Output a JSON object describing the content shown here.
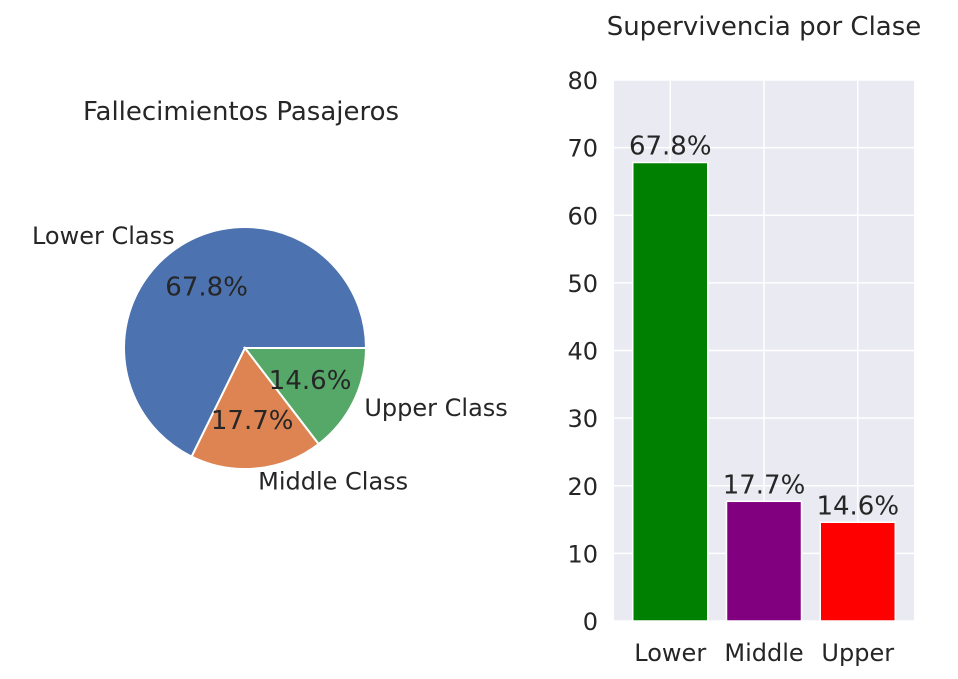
{
  "chart_data": [
    {
      "type": "pie",
      "title": "Fallecimientos Pasajeros",
      "labels": [
        "Lower Class",
        "Middle Class",
        "Upper Class"
      ],
      "values": [
        67.8,
        17.7,
        14.6
      ],
      "pct_labels": [
        "67.8%",
        "17.7%",
        "14.6%"
      ],
      "colors": [
        "#4c72b0",
        "#dd8452",
        "#55a868"
      ]
    },
    {
      "type": "bar",
      "title": "Supervivencia por Clase",
      "categories": [
        "Lower",
        "Middle",
        "Upper"
      ],
      "values": [
        67.8,
        17.7,
        14.6
      ],
      "value_labels": [
        "67.8%",
        "17.7%",
        "14.6%"
      ],
      "colors": [
        "#008000",
        "#800080",
        "#ff0000"
      ],
      "ylim": [
        0,
        80
      ],
      "yticks": [
        0,
        10,
        20,
        30,
        40,
        50,
        60,
        70,
        80
      ],
      "grid": true,
      "background": "#eaeaf2"
    }
  ]
}
